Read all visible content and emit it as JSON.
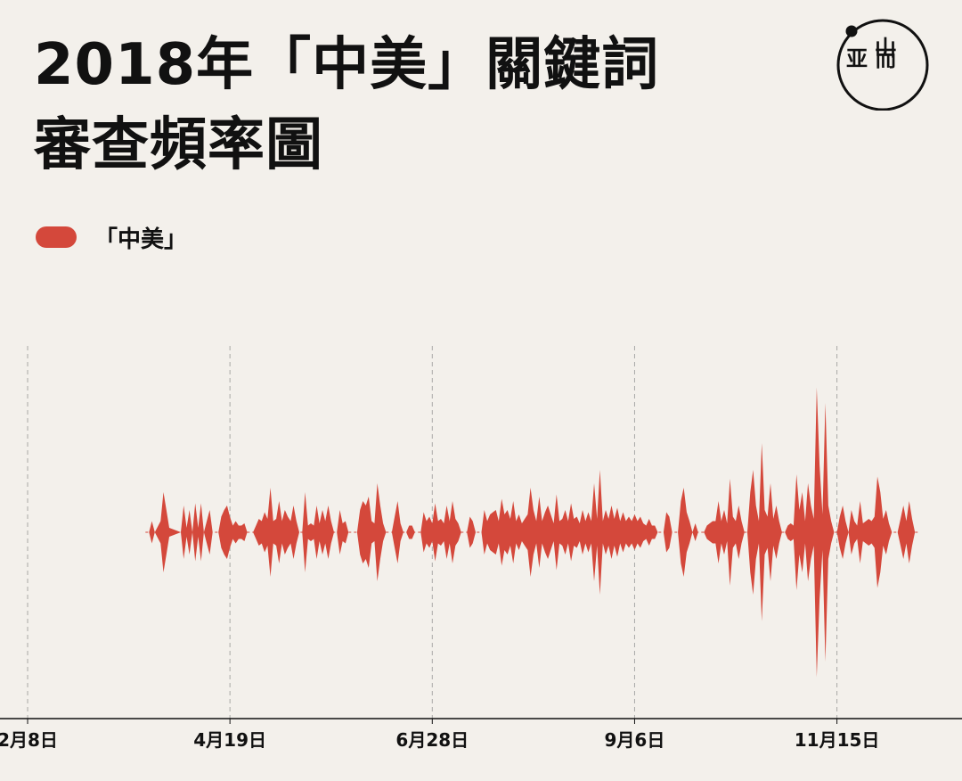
{
  "header": {
    "title_line1": "2018年「中美」關鍵詞",
    "title_line2": "審查頻率圖"
  },
  "logo": {
    "icon": "initium-logo-icon",
    "glyph_top": "山",
    "glyph_bottom": "亚 而"
  },
  "legend": {
    "label": "「中美」",
    "color": "#d4483b"
  },
  "colors": {
    "series": "#d4483b",
    "axis": "#111111",
    "grid": "#8a8a8a",
    "background": "#f3f0eb"
  },
  "chart_data": {
    "type": "area",
    "title": "2018年「中美」關鍵詞審查頻率圖",
    "xlabel": "",
    "ylabel": "",
    "x_range": [
      "2018-02-08",
      "2018-12-31"
    ],
    "ticks": [
      {
        "label": "2月8日",
        "date": "2018-02-08"
      },
      {
        "label": "4月19日",
        "date": "2018-04-19"
      },
      {
        "label": "6月28日",
        "date": "2018-06-28"
      },
      {
        "label": "9月6日",
        "date": "2018-09-06"
      },
      {
        "label": "11月15日",
        "date": "2018-11-15"
      }
    ],
    "legend_position": "top-left",
    "grid": "vertical dashed",
    "series": [
      {
        "name": "「中美」",
        "symmetric": true,
        "points": [
          [
            "2018-03-22",
            0.0
          ],
          [
            "2018-03-23",
            0.05
          ],
          [
            "2018-03-24",
            0.0
          ],
          [
            "2018-03-26",
            0.05
          ],
          [
            "2018-03-27",
            0.18
          ],
          [
            "2018-03-28",
            0.1
          ],
          [
            "2018-03-29",
            0.02
          ],
          [
            "2018-04-02",
            0.0
          ],
          [
            "2018-04-03",
            0.12
          ],
          [
            "2018-04-04",
            0.02
          ],
          [
            "2018-04-05",
            0.1
          ],
          [
            "2018-04-06",
            0.0
          ],
          [
            "2018-04-07",
            0.13
          ],
          [
            "2018-04-08",
            0.02
          ],
          [
            "2018-04-09",
            0.13
          ],
          [
            "2018-04-10",
            0.0
          ],
          [
            "2018-04-12",
            0.1
          ],
          [
            "2018-04-13",
            0.0
          ],
          [
            "2018-04-15",
            0.0
          ],
          [
            "2018-04-16",
            0.07
          ],
          [
            "2018-04-17",
            0.1
          ],
          [
            "2018-04-18",
            0.12
          ],
          [
            "2018-04-19",
            0.07
          ],
          [
            "2018-04-20",
            0.03
          ],
          [
            "2018-04-21",
            0.05
          ],
          [
            "2018-04-22",
            0.03
          ],
          [
            "2018-04-23",
            0.03
          ],
          [
            "2018-04-24",
            0.04
          ],
          [
            "2018-04-25",
            0.0
          ],
          [
            "2018-04-27",
            0.0
          ],
          [
            "2018-04-28",
            0.03
          ],
          [
            "2018-04-29",
            0.06
          ],
          [
            "2018-04-30",
            0.05
          ],
          [
            "2018-05-01",
            0.09
          ],
          [
            "2018-05-02",
            0.06
          ],
          [
            "2018-05-03",
            0.2
          ],
          [
            "2018-05-04",
            0.05
          ],
          [
            "2018-05-05",
            0.06
          ],
          [
            "2018-05-06",
            0.14
          ],
          [
            "2018-05-07",
            0.05
          ],
          [
            "2018-05-08",
            0.1
          ],
          [
            "2018-05-09",
            0.07
          ],
          [
            "2018-05-10",
            0.05
          ],
          [
            "2018-05-11",
            0.12
          ],
          [
            "2018-05-12",
            0.05
          ],
          [
            "2018-05-13",
            0.0
          ],
          [
            "2018-05-14",
            0.0
          ],
          [
            "2018-05-15",
            0.18
          ],
          [
            "2018-05-16",
            0.03
          ],
          [
            "2018-05-17",
            0.04
          ],
          [
            "2018-05-18",
            0.03
          ],
          [
            "2018-05-19",
            0.12
          ],
          [
            "2018-05-20",
            0.04
          ],
          [
            "2018-05-21",
            0.1
          ],
          [
            "2018-05-22",
            0.05
          ],
          [
            "2018-05-23",
            0.12
          ],
          [
            "2018-05-24",
            0.05
          ],
          [
            "2018-05-25",
            0.0
          ],
          [
            "2018-05-26",
            0.0
          ],
          [
            "2018-05-27",
            0.1
          ],
          [
            "2018-05-28",
            0.04
          ],
          [
            "2018-05-29",
            0.05
          ],
          [
            "2018-05-30",
            0.0
          ],
          [
            "2018-06-02",
            0.0
          ],
          [
            "2018-06-03",
            0.1
          ],
          [
            "2018-06-04",
            0.14
          ],
          [
            "2018-06-05",
            0.12
          ],
          [
            "2018-06-06",
            0.16
          ],
          [
            "2018-06-07",
            0.05
          ],
          [
            "2018-06-08",
            0.04
          ],
          [
            "2018-06-09",
            0.22
          ],
          [
            "2018-06-10",
            0.12
          ],
          [
            "2018-06-11",
            0.04
          ],
          [
            "2018-06-12",
            0.0
          ],
          [
            "2018-06-14",
            0.0
          ],
          [
            "2018-06-15",
            0.07
          ],
          [
            "2018-06-16",
            0.14
          ],
          [
            "2018-06-17",
            0.04
          ],
          [
            "2018-06-18",
            0.0
          ],
          [
            "2018-06-19",
            0.0
          ],
          [
            "2018-06-20",
            0.03
          ],
          [
            "2018-06-21",
            0.03
          ],
          [
            "2018-06-22",
            0.0
          ],
          [
            "2018-06-24",
            0.0
          ],
          [
            "2018-06-25",
            0.09
          ],
          [
            "2018-06-26",
            0.05
          ],
          [
            "2018-06-27",
            0.07
          ],
          [
            "2018-06-28",
            0.04
          ],
          [
            "2018-06-29",
            0.13
          ],
          [
            "2018-06-30",
            0.05
          ],
          [
            "2018-07-01",
            0.06
          ],
          [
            "2018-07-02",
            0.04
          ],
          [
            "2018-07-03",
            0.12
          ],
          [
            "2018-07-04",
            0.05
          ],
          [
            "2018-07-05",
            0.14
          ],
          [
            "2018-07-06",
            0.06
          ],
          [
            "2018-07-07",
            0.04
          ],
          [
            "2018-07-08",
            0.0
          ],
          [
            "2018-07-10",
            0.0
          ],
          [
            "2018-07-11",
            0.07
          ],
          [
            "2018-07-12",
            0.05
          ],
          [
            "2018-07-13",
            0.0
          ],
          [
            "2018-07-15",
            0.0
          ],
          [
            "2018-07-16",
            0.1
          ],
          [
            "2018-07-17",
            0.05
          ],
          [
            "2018-07-18",
            0.08
          ],
          [
            "2018-07-19",
            0.09
          ],
          [
            "2018-07-20",
            0.1
          ],
          [
            "2018-07-21",
            0.05
          ],
          [
            "2018-07-22",
            0.15
          ],
          [
            "2018-07-23",
            0.08
          ],
          [
            "2018-07-24",
            0.1
          ],
          [
            "2018-07-25",
            0.06
          ],
          [
            "2018-07-26",
            0.14
          ],
          [
            "2018-07-27",
            0.05
          ],
          [
            "2018-07-28",
            0.08
          ],
          [
            "2018-07-29",
            0.04
          ],
          [
            "2018-07-30",
            0.06
          ],
          [
            "2018-07-31",
            0.08
          ],
          [
            "2018-08-01",
            0.2
          ],
          [
            "2018-08-02",
            0.1
          ],
          [
            "2018-08-03",
            0.05
          ],
          [
            "2018-08-04",
            0.16
          ],
          [
            "2018-08-05",
            0.05
          ],
          [
            "2018-08-06",
            0.09
          ],
          [
            "2018-08-07",
            0.12
          ],
          [
            "2018-08-08",
            0.08
          ],
          [
            "2018-08-09",
            0.04
          ],
          [
            "2018-08-10",
            0.17
          ],
          [
            "2018-08-11",
            0.05
          ],
          [
            "2018-08-12",
            0.06
          ],
          [
            "2018-08-13",
            0.1
          ],
          [
            "2018-08-14",
            0.05
          ],
          [
            "2018-08-15",
            0.13
          ],
          [
            "2018-08-16",
            0.06
          ],
          [
            "2018-08-17",
            0.07
          ],
          [
            "2018-08-18",
            0.04
          ],
          [
            "2018-08-19",
            0.1
          ],
          [
            "2018-08-20",
            0.05
          ],
          [
            "2018-08-21",
            0.09
          ],
          [
            "2018-08-22",
            0.05
          ],
          [
            "2018-08-23",
            0.22
          ],
          [
            "2018-08-24",
            0.06
          ],
          [
            "2018-08-25",
            0.28
          ],
          [
            "2018-08-26",
            0.05
          ],
          [
            "2018-08-27",
            0.1
          ],
          [
            "2018-08-28",
            0.06
          ],
          [
            "2018-08-29",
            0.12
          ],
          [
            "2018-08-30",
            0.06
          ],
          [
            "2018-08-31",
            0.11
          ],
          [
            "2018-09-01",
            0.05
          ],
          [
            "2018-09-02",
            0.09
          ],
          [
            "2018-09-03",
            0.05
          ],
          [
            "2018-09-04",
            0.07
          ],
          [
            "2018-09-05",
            0.05
          ],
          [
            "2018-09-06",
            0.08
          ],
          [
            "2018-09-07",
            0.05
          ],
          [
            "2018-09-08",
            0.07
          ],
          [
            "2018-09-09",
            0.04
          ],
          [
            "2018-09-10",
            0.03
          ],
          [
            "2018-09-11",
            0.06
          ],
          [
            "2018-09-12",
            0.03
          ],
          [
            "2018-09-13",
            0.03
          ],
          [
            "2018-09-14",
            0.0
          ],
          [
            "2018-09-16",
            0.0
          ],
          [
            "2018-09-17",
            0.09
          ],
          [
            "2018-09-18",
            0.07
          ],
          [
            "2018-09-19",
            0.0
          ],
          [
            "2018-09-21",
            0.0
          ],
          [
            "2018-09-22",
            0.14
          ],
          [
            "2018-09-23",
            0.2
          ],
          [
            "2018-09-24",
            0.09
          ],
          [
            "2018-09-25",
            0.05
          ],
          [
            "2018-09-26",
            0.0
          ],
          [
            "2018-09-27",
            0.04
          ],
          [
            "2018-09-28",
            0.0
          ],
          [
            "2018-09-30",
            0.0
          ],
          [
            "2018-10-01",
            0.03
          ],
          [
            "2018-10-02",
            0.04
          ],
          [
            "2018-10-03",
            0.05
          ],
          [
            "2018-10-04",
            0.05
          ],
          [
            "2018-10-05",
            0.14
          ],
          [
            "2018-10-06",
            0.05
          ],
          [
            "2018-10-07",
            0.1
          ],
          [
            "2018-10-08",
            0.04
          ],
          [
            "2018-10-09",
            0.24
          ],
          [
            "2018-10-10",
            0.07
          ],
          [
            "2018-10-11",
            0.05
          ],
          [
            "2018-10-12",
            0.12
          ],
          [
            "2018-10-13",
            0.05
          ],
          [
            "2018-10-14",
            0.0
          ],
          [
            "2018-10-15",
            0.0
          ],
          [
            "2018-10-16",
            0.18
          ],
          [
            "2018-10-17",
            0.28
          ],
          [
            "2018-10-18",
            0.12
          ],
          [
            "2018-10-19",
            0.05
          ],
          [
            "2018-10-20",
            0.4
          ],
          [
            "2018-10-21",
            0.1
          ],
          [
            "2018-10-22",
            0.07
          ],
          [
            "2018-10-23",
            0.22
          ],
          [
            "2018-10-24",
            0.06
          ],
          [
            "2018-10-25",
            0.12
          ],
          [
            "2018-10-26",
            0.05
          ],
          [
            "2018-10-27",
            0.0
          ],
          [
            "2018-10-28",
            0.0
          ],
          [
            "2018-10-29",
            0.03
          ],
          [
            "2018-10-30",
            0.04
          ],
          [
            "2018-10-31",
            0.03
          ],
          [
            "2018-11-01",
            0.26
          ],
          [
            "2018-11-02",
            0.1
          ],
          [
            "2018-11-03",
            0.18
          ],
          [
            "2018-11-04",
            0.05
          ],
          [
            "2018-11-05",
            0.22
          ],
          [
            "2018-11-06",
            0.12
          ],
          [
            "2018-11-07",
            0.06
          ],
          [
            "2018-11-08",
            0.65
          ],
          [
            "2018-11-09",
            0.3
          ],
          [
            "2018-11-10",
            0.08
          ],
          [
            "2018-11-11",
            0.58
          ],
          [
            "2018-11-12",
            0.12
          ],
          [
            "2018-11-13",
            0.05
          ],
          [
            "2018-11-14",
            0.0
          ],
          [
            "2018-11-15",
            0.0
          ],
          [
            "2018-11-16",
            0.07
          ],
          [
            "2018-11-17",
            0.12
          ],
          [
            "2018-11-18",
            0.05
          ],
          [
            "2018-11-19",
            0.0
          ],
          [
            "2018-11-20",
            0.1
          ],
          [
            "2018-11-21",
            0.05
          ],
          [
            "2018-11-22",
            0.03
          ],
          [
            "2018-11-23",
            0.14
          ],
          [
            "2018-11-24",
            0.04
          ],
          [
            "2018-11-25",
            0.05
          ],
          [
            "2018-11-26",
            0.06
          ],
          [
            "2018-11-27",
            0.05
          ],
          [
            "2018-11-28",
            0.07
          ],
          [
            "2018-11-29",
            0.25
          ],
          [
            "2018-11-30",
            0.18
          ],
          [
            "2018-12-01",
            0.06
          ],
          [
            "2018-12-02",
            0.1
          ],
          [
            "2018-12-03",
            0.04
          ],
          [
            "2018-12-04",
            0.0
          ],
          [
            "2018-12-06",
            0.0
          ],
          [
            "2018-12-07",
            0.06
          ],
          [
            "2018-12-08",
            0.12
          ],
          [
            "2018-12-09",
            0.05
          ],
          [
            "2018-12-10",
            0.14
          ],
          [
            "2018-12-11",
            0.06
          ],
          [
            "2018-12-12",
            0.0
          ]
        ]
      }
    ]
  }
}
